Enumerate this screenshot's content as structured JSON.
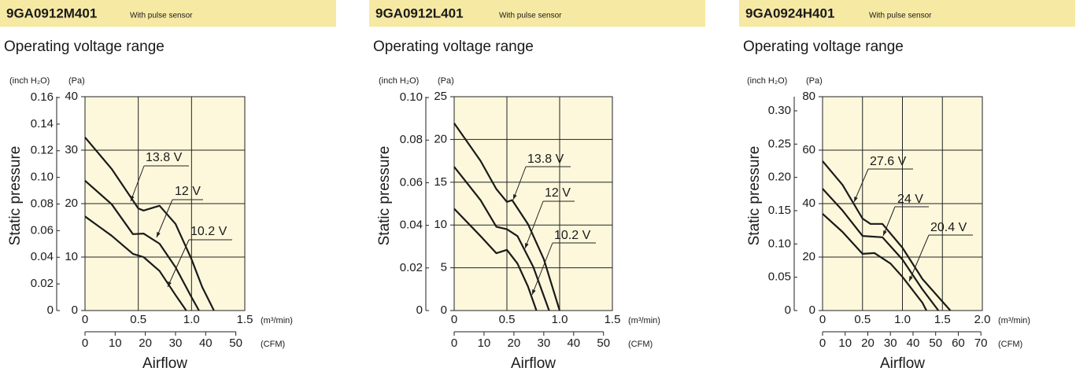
{
  "chart_data": [
    {
      "type": "line",
      "title": "9GA0912M401",
      "subtitle": "With pulse sensor",
      "heading": "Operating voltage range",
      "y_label": "Static pressure",
      "x_label": "Airflow",
      "y_unit": "(Pa)",
      "y2_unit": "(inch H₂O)",
      "x_unit": "(m³/min)",
      "x2_unit": "(CFM)",
      "xlim": [
        0,
        1.5
      ],
      "xticks": [
        0,
        0.5,
        {
          "value": 1,
          "label": "1.0"
        },
        1.5
      ],
      "x2lim": [
        0,
        52.97
      ],
      "x2ticks": [
        0,
        10,
        20,
        30,
        40,
        50
      ],
      "ylim": [
        0,
        40
      ],
      "yticks": [
        0,
        10,
        20,
        30,
        40
      ],
      "y2lim": [
        0,
        0.1606
      ],
      "y2ticks": [
        0,
        0.02,
        0.04,
        0.06,
        0.08,
        {
          "value": 0.1,
          "label": "0.10"
        },
        0.12,
        0.14,
        0.16
      ],
      "grid": true,
      "series": [
        {
          "name": "13.8 V",
          "color": "#1a1a1a",
          "x": [
            0,
            0.25,
            0.5,
            0.55,
            0.7,
            0.85,
            1.0,
            1.1,
            1.21
          ],
          "values": [
            32.4,
            26.5,
            19.1,
            18.7,
            19.6,
            16.2,
            9.6,
            4.4,
            0
          ]
        },
        {
          "name": "12 V",
          "color": "#1a1a1a",
          "x": [
            0,
            0.25,
            0.45,
            0.55,
            0.7,
            0.85,
            1.0,
            1.07
          ],
          "values": [
            24.3,
            19.9,
            14.3,
            14.4,
            12.5,
            8.1,
            2.5,
            0
          ]
        },
        {
          "name": "10.2 V",
          "color": "#1a1a1a",
          "x": [
            0,
            0.25,
            0.45,
            0.55,
            0.7,
            0.85,
            0.95
          ],
          "values": [
            17.6,
            14,
            10.6,
            10,
            7.4,
            2.9,
            0
          ]
        }
      ]
    },
    {
      "type": "line",
      "title": "9GA0912L401",
      "subtitle": "With pulse sensor",
      "heading": "Operating voltage range",
      "y_label": "Static pressure",
      "x_label": "Airflow",
      "y_unit": "(Pa)",
      "y2_unit": "(inch H₂O)",
      "x_unit": "(m³/min)",
      "x2_unit": "(CFM)",
      "xlim": [
        0,
        1.5
      ],
      "xticks": [
        0,
        0.5,
        {
          "value": 1,
          "label": "1.0"
        },
        1.5
      ],
      "x2lim": [
        0,
        52.97
      ],
      "x2ticks": [
        0,
        10,
        20,
        30,
        40,
        50
      ],
      "ylim": [
        0,
        25
      ],
      "yticks": [
        0,
        5,
        10,
        15,
        20,
        25
      ],
      "y2lim": [
        0,
        0.1004
      ],
      "y2ticks": [
        0,
        0.02,
        0.04,
        0.06,
        0.08,
        {
          "value": 0.1,
          "label": "0.10"
        }
      ],
      "grid": true,
      "series": [
        {
          "name": "13.8 V",
          "color": "#1a1a1a",
          "x": [
            0,
            0.25,
            0.4,
            0.5,
            0.55,
            0.7,
            0.85,
            1.0
          ],
          "values": [
            21.9,
            17.5,
            14.2,
            12.7,
            12.9,
            10.1,
            6,
            0
          ]
        },
        {
          "name": "12 V",
          "color": "#1a1a1a",
          "x": [
            0,
            0.25,
            0.4,
            0.5,
            0.6,
            0.75,
            0.9
          ],
          "values": [
            16.8,
            12.9,
            9.8,
            9.5,
            8.7,
            5.1,
            0
          ]
        },
        {
          "name": "10.2 V",
          "color": "#1a1a1a",
          "x": [
            0,
            0.25,
            0.4,
            0.5,
            0.6,
            0.7,
            0.78
          ],
          "values": [
            11.9,
            8.7,
            6.7,
            7.1,
            5.5,
            2.8,
            0
          ]
        }
      ]
    },
    {
      "type": "line",
      "title": "9GA0924H401",
      "subtitle": "With pulse sensor",
      "heading": "Operating voltage range",
      "y_label": "Static pressure",
      "x_label": "Airflow",
      "y_unit": "(Pa)",
      "y2_unit": "(inch H₂O)",
      "x_unit": "(m³/min)",
      "x2_unit": "(CFM)",
      "xlim": [
        0,
        2
      ],
      "xticks": [
        0,
        0.5,
        {
          "value": 1,
          "label": "1.0"
        },
        1.5,
        {
          "value": 2,
          "label": "2.0"
        }
      ],
      "x2lim": [
        0,
        70.63
      ],
      "x2ticks": [
        0,
        10,
        20,
        30,
        40,
        50,
        60,
        70
      ],
      "ylim": [
        0,
        80
      ],
      "yticks": [
        0,
        20,
        40,
        60,
        80
      ],
      "y2lim": [
        0,
        0.3212
      ],
      "y2ticks": [
        0,
        0.05,
        {
          "value": 0.1,
          "label": "0.10"
        },
        0.15,
        {
          "value": 0.2,
          "label": "0.20"
        },
        0.25,
        {
          "value": 0.3,
          "label": "0.30"
        }
      ],
      "grid": true,
      "series": [
        {
          "name": "27.6 V",
          "color": "#1a1a1a",
          "x": [
            0,
            0.25,
            0.5,
            0.6,
            0.75,
            1.0,
            1.25,
            1.6
          ],
          "values": [
            55.9,
            47,
            34.4,
            32.4,
            32.4,
            23.5,
            11.8,
            0
          ]
        },
        {
          "name": "24 V",
          "color": "#1a1a1a",
          "x": [
            0,
            0.25,
            0.5,
            0.75,
            1.0,
            1.25,
            1.45
          ],
          "values": [
            45.6,
            37.4,
            27.9,
            27.4,
            19.1,
            7.9,
            0
          ]
        },
        {
          "name": "20.4 V",
          "color": "#1a1a1a",
          "x": [
            0,
            0.25,
            0.5,
            0.65,
            0.85,
            1.0,
            1.25,
            1.3
          ],
          "values": [
            36.2,
            29.4,
            21.2,
            21.5,
            17.6,
            12.6,
            2.9,
            0
          ]
        }
      ]
    }
  ]
}
